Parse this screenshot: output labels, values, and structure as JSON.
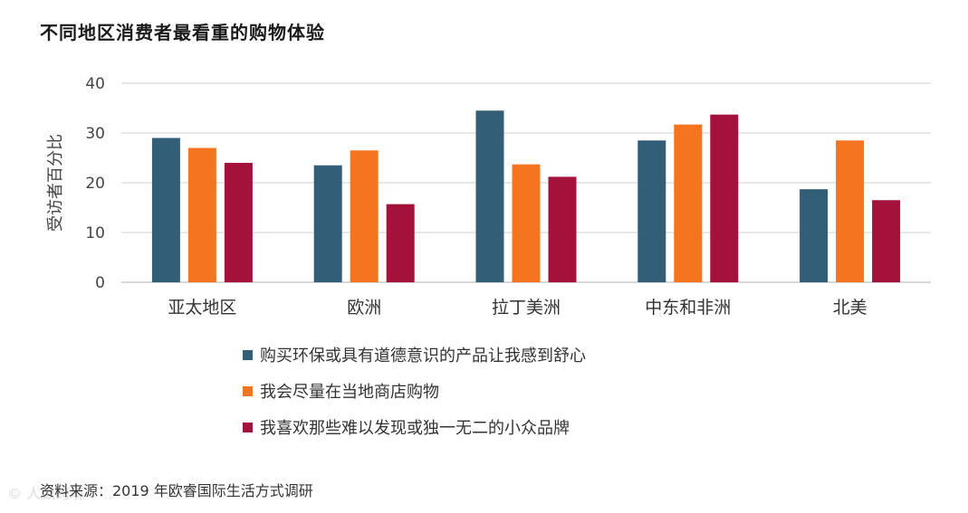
{
  "title": "不同地区消费者最看重的购物体验",
  "source": "资料来源：2019 年欧睿国际生活方式调研",
  "watermark": "© 人数跨境",
  "chart_data": {
    "type": "bar",
    "title": "不同地区消费者最看重的购物体验",
    "xlabel": "",
    "ylabel": "受访者百分比",
    "ylim": [
      0,
      40
    ],
    "yticks": [
      0,
      10,
      20,
      30,
      40
    ],
    "grid": true,
    "legend_position": "bottom",
    "categories": [
      "亚太地区",
      "欧洲",
      "拉丁美洲",
      "中东和非洲",
      "北美"
    ],
    "series": [
      {
        "name": "购买环保或具有道德意识的产品让我感到舒心",
        "color": "#335e78",
        "values": [
          29,
          23.5,
          34.5,
          28.5,
          18.7
        ]
      },
      {
        "name": "我会尽量在当地商店购物",
        "color": "#f47420",
        "values": [
          27,
          26.5,
          23.7,
          31.7,
          28.5
        ]
      },
      {
        "name": "我喜欢那些难以发现或独一无二的小众品牌",
        "color": "#a4113b",
        "values": [
          24,
          15.7,
          21.2,
          33.7,
          16.5
        ]
      }
    ]
  }
}
